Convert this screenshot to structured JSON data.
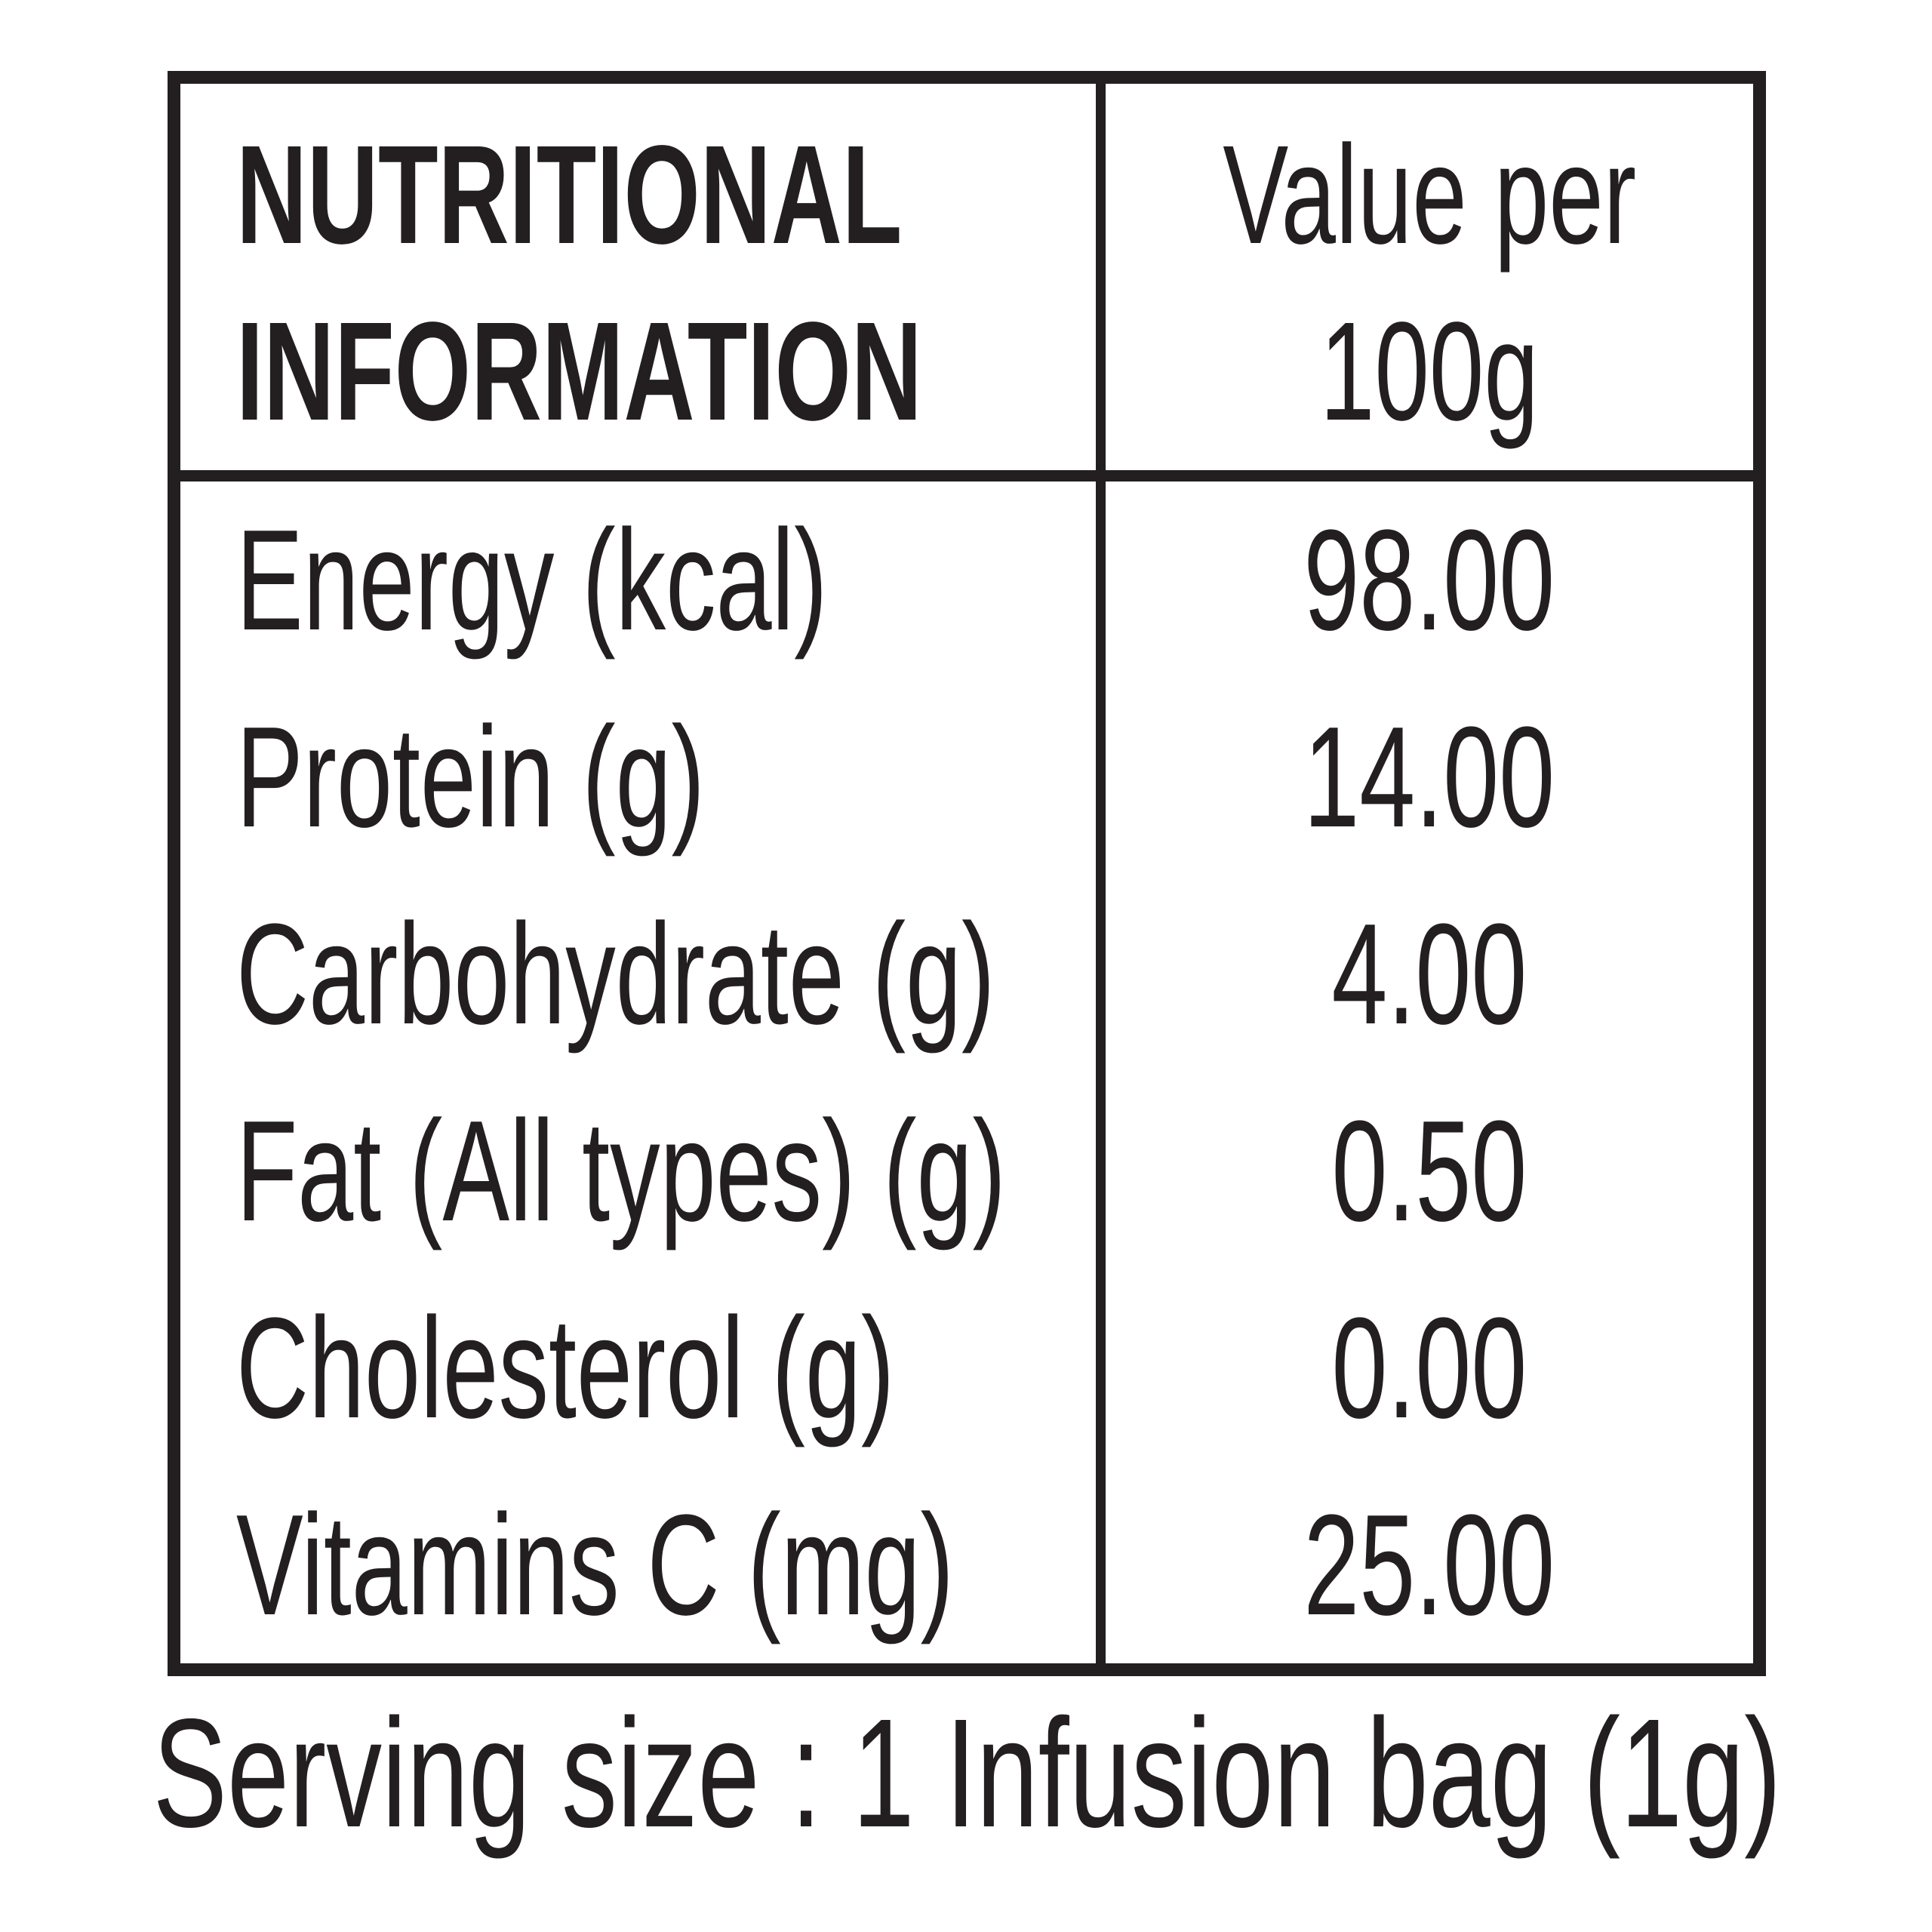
{
  "table": {
    "header": {
      "col1_line1": "NUTRITIONAL",
      "col1_line2": "INFORMATION",
      "col2_line1": "Value per",
      "col2_line2": "100g"
    },
    "rows": [
      {
        "label": "Energy (kcal)",
        "value": "98.00"
      },
      {
        "label": "Protein (g)",
        "value": "14.00"
      },
      {
        "label": "Carbohydrate (g)",
        "value": "4.00"
      },
      {
        "label": "Fat (All types) (g)",
        "value": "0.50"
      },
      {
        "label": "Cholesterol (g)",
        "value": "0.00"
      },
      {
        "label": "Vitamins C (mg)",
        "value": "25.00"
      }
    ]
  },
  "serving_size": "Serving size : 1 Infusion bag (1g)",
  "colors": {
    "ink": "#231f20",
    "background": "#ffffff"
  }
}
